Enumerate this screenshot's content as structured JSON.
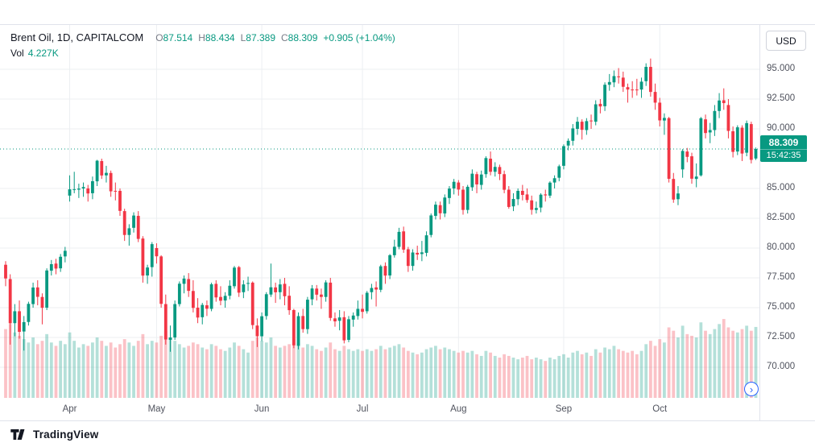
{
  "header": {
    "symbol_title": "Brent Oil, 1D, CAPITALCOM",
    "ohlc": {
      "o_label": "O",
      "o": "87.514",
      "h_label": "H",
      "h": "88.434",
      "l_label": "L",
      "l": "87.389",
      "c_label": "C",
      "c": "88.309",
      "change": "+0.905 (+1.04%)"
    },
    "volume_label": "Vol",
    "volume_value": "4.227K"
  },
  "price_axis": {
    "currency_button": "USD",
    "ticks": [
      {
        "label": "95.000",
        "value": 95
      },
      {
        "label": "92.500",
        "value": 92.5
      },
      {
        "label": "90.000",
        "value": 90
      },
      {
        "label": "85.000",
        "value": 85
      },
      {
        "label": "82.500",
        "value": 82.5
      },
      {
        "label": "80.000",
        "value": 80
      },
      {
        "label": "77.500",
        "value": 77.5
      },
      {
        "label": "75.000",
        "value": 75
      },
      {
        "label": "72.500",
        "value": 72.5
      },
      {
        "label": "70.000",
        "value": 70
      }
    ],
    "last_price_label": "88.309",
    "countdown": "15:42:35"
  },
  "time_axis": {
    "labels": [
      {
        "label": "Apr",
        "candle_index": 14
      },
      {
        "label": "May",
        "candle_index": 33
      },
      {
        "label": "Jun",
        "candle_index": 56
      },
      {
        "label": "Jul",
        "candle_index": 78
      },
      {
        "label": "Aug",
        "candle_index": 99
      },
      {
        "label": "Sep",
        "candle_index": 122
      },
      {
        "label": "Oct",
        "candle_index": 143
      }
    ]
  },
  "footer": {
    "brand": "TradingView"
  },
  "colors": {
    "up": "#089981",
    "down": "#f23645",
    "vol_up": "rgba(8,153,129,0.30)",
    "vol_down": "rgba(242,54,69,0.30)",
    "grid": "#eceff2",
    "axis_line": "#e0e3eb",
    "axis_text": "#50535e",
    "legend_value": "#089981"
  },
  "chart_data": {
    "type": "candlestick",
    "symbol": "Brent Oil",
    "interval": "1D",
    "exchange": "CAPITALCOM",
    "last_price": 88.309,
    "ylim": [
      67.5,
      98
    ],
    "price_grid_step": 2.5,
    "volume_unit": "K",
    "volume_axis_max": 4.8,
    "candles_format": [
      "open",
      "high",
      "low",
      "close",
      "volume_K"
    ],
    "candles": [
      [
        78.6,
        78.9,
        76.8,
        77.45,
        4.1
      ],
      [
        77.4,
        77.8,
        71.9,
        73.69,
        4.4
      ],
      [
        73.7,
        75.3,
        72.6,
        74.7,
        3.9
      ],
      [
        74.7,
        75.6,
        72.4,
        72.97,
        3.7
      ],
      [
        73,
        74.3,
        71.4,
        73.79,
        3.5
      ],
      [
        73.8,
        75.5,
        73.5,
        75.32,
        3.3
      ],
      [
        75.3,
        77.1,
        75,
        76.69,
        3.6
      ],
      [
        76.7,
        77.3,
        75.2,
        75.91,
        3.2
      ],
      [
        75.9,
        76.2,
        73.6,
        74.99,
        3.4
      ],
      [
        75,
        78.3,
        74.8,
        78.12,
        3.8
      ],
      [
        78.1,
        79,
        77.7,
        78.65,
        3.3
      ],
      [
        78.7,
        79.1,
        77.8,
        78.28,
        3.1
      ],
      [
        78.3,
        79.5,
        78,
        79.27,
        3.4
      ],
      [
        79.3,
        80.1,
        78.8,
        79.77,
        3.2
      ],
      [
        84.4,
        86.1,
        83.9,
        84.93,
        3.9
      ],
      [
        84.9,
        86.4,
        84.6,
        84.94,
        3.4
      ],
      [
        84.9,
        85.4,
        84.2,
        84.99,
        3
      ],
      [
        85,
        85.5,
        84.3,
        85.12,
        3.2
      ],
      [
        85,
        85.3,
        83.9,
        84.58,
        3.1
      ],
      [
        84.6,
        86,
        84.1,
        85.61,
        3.3
      ],
      [
        85.6,
        87.4,
        85.2,
        87.33,
        3.6
      ],
      [
        87.3,
        87.5,
        85.8,
        86.09,
        3.4
      ],
      [
        86.1,
        86.9,
        85.5,
        86.31,
        3.1
      ],
      [
        86.3,
        86.5,
        84.3,
        84.76,
        3.3
      ],
      [
        84.8,
        85.5,
        84,
        84.77,
        3
      ],
      [
        84.8,
        85,
        82.7,
        83.12,
        3.2
      ],
      [
        83.1,
        83.3,
        80.6,
        81.1,
        3.5
      ],
      [
        81.1,
        82,
        80.2,
        81.66,
        3.3
      ],
      [
        81.7,
        83,
        81.3,
        82.73,
        3.1
      ],
      [
        82.7,
        83.1,
        80.5,
        80.77,
        3.4
      ],
      [
        80.8,
        81,
        77.1,
        77.69,
        3.8
      ],
      [
        77.7,
        78.6,
        77,
        78.37,
        3.2
      ],
      [
        78.4,
        80.5,
        77.6,
        80.33,
        3.4
      ],
      [
        80,
        80.4,
        78.7,
        79.31,
        3.3
      ],
      [
        79.3,
        79.4,
        75,
        75.32,
        3.7
      ],
      [
        75.3,
        76.1,
        71.9,
        72.33,
        4
      ],
      [
        72.3,
        73.5,
        71.3,
        72.5,
        3.6
      ],
      [
        72.5,
        75.6,
        72.3,
        75.3,
        3.4
      ],
      [
        75.3,
        77.2,
        75.1,
        77.01,
        3.2
      ],
      [
        77,
        77.7,
        76.2,
        77.44,
        3
      ],
      [
        77.4,
        77.9,
        75.9,
        76.41,
        3.1
      ],
      [
        76.4,
        77.3,
        74.6,
        74.98,
        3.3
      ],
      [
        75,
        75.8,
        73.7,
        74.17,
        3.2
      ],
      [
        74.2,
        75.4,
        73.6,
        75.23,
        3
      ],
      [
        75.2,
        75.6,
        74.3,
        74.91,
        2.9
      ],
      [
        74.9,
        77.1,
        74.7,
        76.96,
        3.2
      ],
      [
        77,
        77.3,
        75.5,
        75.86,
        3.1
      ],
      [
        75.9,
        76.8,
        75.2,
        75.58,
        2.9
      ],
      [
        75.6,
        76.3,
        75,
        75.99,
        2.8
      ],
      [
        76,
        77.3,
        75.7,
        76.84,
        3
      ],
      [
        76.8,
        78.5,
        76.6,
        78.36,
        3.3
      ],
      [
        78.4,
        78.5,
        75.9,
        76.26,
        3.1
      ],
      [
        76.3,
        77.3,
        75.8,
        76.95,
        2.9
      ],
      [
        77,
        77.6,
        76.4,
        77.07,
        2.7
      ],
      [
        77.1,
        77.2,
        73.2,
        73.54,
        3.4
      ],
      [
        73.5,
        74.1,
        71.7,
        72.6,
        3.6
      ],
      [
        72.6,
        74.6,
        72.2,
        74.28,
        3.4
      ],
      [
        74.3,
        76.3,
        74,
        76.13,
        3.3
      ],
      [
        76.1,
        78.7,
        75.9,
        76.71,
        3.6
      ],
      [
        76.7,
        77.1,
        75.4,
        76.29,
        3.1
      ],
      [
        76.3,
        77.4,
        75.7,
        76.95,
        3
      ],
      [
        77,
        77.5,
        75.2,
        75.96,
        3.1
      ],
      [
        76,
        76.8,
        74.4,
        74.79,
        3.2
      ],
      [
        74.8,
        74.9,
        71.6,
        71.84,
        3.5
      ],
      [
        71.8,
        74.6,
        71.5,
        74.29,
        3.3
      ],
      [
        74.3,
        74.9,
        72.9,
        73.2,
        3
      ],
      [
        73.2,
        75.9,
        72.8,
        75.67,
        3.2
      ],
      [
        75.7,
        76.9,
        75.2,
        76.61,
        3.1
      ],
      [
        76.6,
        76.9,
        75.6,
        76.09,
        2.9
      ],
      [
        76.1,
        76.6,
        74.9,
        75.9,
        2.8
      ],
      [
        75.9,
        77.3,
        75.5,
        77.12,
        3
      ],
      [
        77.1,
        77.5,
        73.9,
        74.14,
        3.3
      ],
      [
        74.1,
        74.6,
        73.4,
        73.85,
        2.9
      ],
      [
        73.9,
        74.8,
        73.1,
        74.18,
        2.8
      ],
      [
        74.2,
        74.7,
        72,
        72.26,
        3.1
      ],
      [
        72.3,
        74.3,
        72.1,
        74.03,
        2.9
      ],
      [
        74,
        74.6,
        73.4,
        74.34,
        2.8
      ],
      [
        74.3,
        75.6,
        74,
        74.9,
        2.9
      ],
      [
        74.9,
        76.1,
        74.1,
        74.65,
        2.8
      ],
      [
        74.7,
        76.4,
        74.5,
        76.25,
        2.9
      ],
      [
        76.3,
        77,
        75.7,
        76.65,
        2.8
      ],
      [
        76.7,
        77.2,
        75.1,
        76.52,
        2.9
      ],
      [
        76.5,
        78.6,
        76.3,
        78.47,
        3.1
      ],
      [
        78.5,
        78.8,
        77,
        77.69,
        2.9
      ],
      [
        77.7,
        79.5,
        77.4,
        79.4,
        3
      ],
      [
        79.4,
        80.7,
        79.2,
        80.11,
        3.1
      ],
      [
        80.1,
        81.7,
        79.9,
        81.36,
        3.2
      ],
      [
        81.4,
        81.8,
        79.6,
        79.87,
        3
      ],
      [
        79.9,
        80.1,
        78,
        78.5,
        2.8
      ],
      [
        78.5,
        79.9,
        78.1,
        79.63,
        2.7
      ],
      [
        79.6,
        80.2,
        79,
        79.46,
        2.6
      ],
      [
        79.5,
        80.6,
        78.9,
        79.64,
        2.7
      ],
      [
        79.6,
        81.4,
        79.3,
        81.07,
        2.9
      ],
      [
        81.1,
        82.9,
        80.9,
        82.74,
        3
      ],
      [
        82.7,
        83.9,
        82.4,
        83.64,
        3.1
      ],
      [
        83.6,
        83.9,
        82.4,
        82.92,
        2.9
      ],
      [
        82.9,
        84.5,
        82.6,
        84.24,
        3
      ],
      [
        84.2,
        85.2,
        83.7,
        84.99,
        2.9
      ],
      [
        85,
        85.8,
        84.5,
        85.56,
        2.8
      ],
      [
        85.5,
        85.7,
        84.4,
        84.91,
        2.7
      ],
      [
        84.9,
        85.2,
        82.8,
        83.2,
        2.8
      ],
      [
        83.2,
        85.3,
        82.9,
        85.14,
        2.7
      ],
      [
        85.1,
        86.6,
        84.8,
        86.24,
        2.8
      ],
      [
        86.2,
        86.4,
        84.6,
        85.34,
        2.6
      ],
      [
        85.3,
        86.5,
        84.9,
        86.17,
        2.5
      ],
      [
        86.2,
        87.7,
        85.9,
        87.55,
        2.8
      ],
      [
        87.5,
        88.1,
        86.1,
        86.4,
        2.7
      ],
      [
        86.4,
        87.2,
        86,
        86.81,
        2.5
      ],
      [
        86.8,
        87,
        85.7,
        86.21,
        2.4
      ],
      [
        86.2,
        86.5,
        84.6,
        84.89,
        2.6
      ],
      [
        84.9,
        85.2,
        83.3,
        83.45,
        2.5
      ],
      [
        83.5,
        84.6,
        83.1,
        84.12,
        2.4
      ],
      [
        84.1,
        85,
        83.6,
        84.8,
        2.3
      ],
      [
        84.8,
        85.3,
        84,
        84.46,
        2.4
      ],
      [
        84.5,
        85,
        83.8,
        84.03,
        2.5
      ],
      [
        84,
        84.4,
        82.8,
        83.21,
        2.3
      ],
      [
        83.2,
        83.9,
        82.9,
        83.36,
        2.4
      ],
      [
        83.4,
        84.6,
        83,
        84.48,
        2.3
      ],
      [
        84.5,
        84.9,
        83.9,
        84.42,
        2.2
      ],
      [
        84.4,
        85.6,
        84.2,
        85.49,
        2.4
      ],
      [
        85.5,
        86.1,
        85,
        85.86,
        2.3
      ],
      [
        85.9,
        87,
        85.6,
        86.86,
        2.5
      ],
      [
        86.9,
        88.7,
        86.6,
        88.55,
        2.6
      ],
      [
        88.6,
        89.2,
        88.2,
        89,
        2.4
      ],
      [
        89,
        90.4,
        88.6,
        90.04,
        2.7
      ],
      [
        90,
        91,
        89.5,
        90.6,
        2.8
      ],
      [
        90.6,
        90.8,
        89.1,
        89.92,
        2.6
      ],
      [
        89.9,
        90.9,
        89.5,
        90.65,
        2.7
      ],
      [
        90.7,
        91.2,
        90,
        90.64,
        2.5
      ],
      [
        90.6,
        92.4,
        90.3,
        92.06,
        2.9
      ],
      [
        92.1,
        92.5,
        91.3,
        91.88,
        2.7
      ],
      [
        91.9,
        93.9,
        91.5,
        93.7,
        3
      ],
      [
        93.7,
        94.6,
        93.2,
        93.93,
        2.9
      ],
      [
        93.9,
        94.9,
        93.5,
        94.43,
        3.1
      ],
      [
        94.4,
        95.1,
        93.8,
        94.34,
        2.9
      ],
      [
        94.3,
        94.8,
        93.1,
        93.53,
        2.8
      ],
      [
        93.5,
        93.8,
        92.2,
        93.3,
        2.7
      ],
      [
        93.3,
        94,
        92.6,
        93.27,
        2.8
      ],
      [
        93.3,
        94.2,
        92.8,
        93.29,
        2.6
      ],
      [
        93.3,
        94.3,
        92.6,
        93.96,
        2.8
      ],
      [
        94,
        95.5,
        93.6,
        95.2,
        3.2
      ],
      [
        95.2,
        95.9,
        92.7,
        93.1,
        3.4
      ],
      [
        93.1,
        93.8,
        91.6,
        92.2,
        3.1
      ],
      [
        92.2,
        92.6,
        90.2,
        90.71,
        3.5
      ],
      [
        90.7,
        91.3,
        89.5,
        90.92,
        3.3
      ],
      [
        90.9,
        91,
        85.5,
        85.81,
        4.2
      ],
      [
        85.8,
        86.3,
        83.8,
        84.07,
        4
      ],
      [
        84.1,
        85.2,
        83.6,
        84.58,
        3.6
      ],
      [
        86.6,
        88.3,
        85.9,
        88.15,
        4.3
      ],
      [
        88.1,
        88.4,
        87.2,
        87.65,
        3.8
      ],
      [
        87.7,
        88,
        85.4,
        85.82,
        3.7
      ],
      [
        85.8,
        87.1,
        85.1,
        86,
        3.6
      ],
      [
        86.1,
        91,
        86,
        90.89,
        4.5
      ],
      [
        90.8,
        91.2,
        89.2,
        89.65,
        4
      ],
      [
        89.7,
        90.5,
        88.8,
        89.9,
        3.8
      ],
      [
        89.9,
        92,
        89.4,
        91.5,
        4.1
      ],
      [
        91.5,
        93,
        90.9,
        92.38,
        4.4
      ],
      [
        92.4,
        93.4,
        91.6,
        92.16,
        4.7
      ],
      [
        92,
        92.5,
        89.2,
        89.83,
        4.2
      ],
      [
        89.8,
        90.2,
        87.6,
        88.07,
        4
      ],
      [
        88.1,
        90.3,
        87.8,
        90.13,
        3.9
      ],
      [
        90.1,
        90.3,
        87.3,
        87.93,
        4.1
      ],
      [
        88,
        90.7,
        87.7,
        90.48,
        4.3
      ],
      [
        90.4,
        90.6,
        87.1,
        87.4,
        4
      ],
      [
        87.514,
        88.434,
        87.389,
        88.309,
        4.227
      ]
    ]
  }
}
